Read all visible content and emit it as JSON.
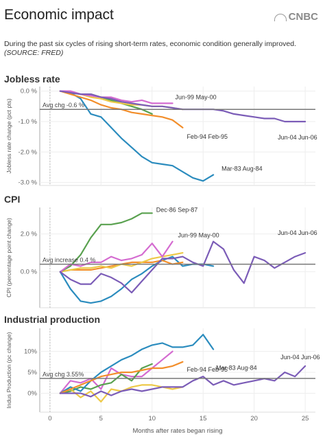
{
  "header": {
    "title": "Economic impact",
    "logo_text": "CNBC",
    "subtitle": "During the past six cycles of rising short-term rates, economic condition generally improved.",
    "source": "(SOURCE: FRED)"
  },
  "colors": {
    "mar83": "#2b8cbe",
    "feb94": "#f28e2b",
    "jun99": "#d46bd0",
    "jun04": "#7b5cb7",
    "dec86": "#59a14f",
    "extra": "#edc948",
    "avg": "#777777",
    "axis": "#aaaaaa"
  },
  "shared": {
    "xlabel": "Months after rates began rising",
    "x_ticks": [
      "0",
      "5",
      "10",
      "15",
      "20",
      "25"
    ]
  },
  "chart_data": [
    {
      "type": "line",
      "title": "Jobless rate",
      "ylabel": "Jobless rate change (pct pts)",
      "y_ticks": [
        "0.0 %",
        "-1.0 %",
        "-2.0 %",
        "-3.0 %"
      ],
      "ylim": [
        -3.1,
        0.15
      ],
      "xlim": [
        -1,
        26
      ],
      "avg": {
        "value": -0.6,
        "label": "Avg chg -0.6 %"
      },
      "series": [
        {
          "name": "Mar-83 Aug-84",
          "color_key": "mar83",
          "x": [
            1,
            2,
            3,
            4,
            5,
            6,
            7,
            8,
            9,
            10,
            11,
            12,
            13,
            14,
            15,
            16
          ],
          "y": [
            0,
            -0.05,
            -0.25,
            -0.75,
            -0.85,
            -1.2,
            -1.55,
            -1.85,
            -2.15,
            -2.35,
            -2.4,
            -2.45,
            -2.65,
            -2.85,
            -2.95,
            -2.75
          ]
        },
        {
          "name": "Feb-94 Feb-95",
          "color_key": "feb94",
          "x": [
            1,
            2,
            3,
            4,
            5,
            6,
            7,
            8,
            9,
            10,
            11,
            12,
            13
          ],
          "y": [
            0,
            -0.1,
            -0.2,
            -0.3,
            -0.45,
            -0.55,
            -0.6,
            -0.7,
            -0.75,
            -0.8,
            -0.85,
            -0.95,
            -1.2
          ]
        },
        {
          "name": "Jun-99 May-00",
          "color_key": "jun99",
          "x": [
            1,
            2,
            3,
            4,
            5,
            6,
            7,
            8,
            9,
            10,
            11,
            12
          ],
          "y": [
            0,
            0,
            -0.1,
            -0.15,
            -0.2,
            -0.2,
            -0.3,
            -0.35,
            -0.3,
            -0.4,
            -0.4,
            -0.4
          ]
        },
        {
          "name": "Jun-04 Jun-06",
          "color_key": "jun04",
          "x": [
            1,
            2,
            3,
            4,
            5,
            6,
            7,
            8,
            9,
            10,
            11,
            12,
            13,
            14,
            15,
            16,
            17,
            18,
            19,
            20,
            21,
            22,
            23,
            24,
            25
          ],
          "y": [
            0,
            -0.05,
            -0.1,
            -0.1,
            -0.2,
            -0.25,
            -0.35,
            -0.4,
            -0.45,
            -0.5,
            -0.5,
            -0.55,
            -0.6,
            -0.6,
            -0.6,
            -0.6,
            -0.65,
            -0.75,
            -0.8,
            -0.85,
            -0.9,
            -0.9,
            -1.0,
            -1.0,
            -1.0
          ]
        },
        {
          "name": "",
          "color_key": "dec86",
          "x": [
            1,
            2,
            3,
            4,
            5,
            6,
            7,
            8,
            9,
            10
          ],
          "y": [
            0,
            -0.05,
            -0.1,
            -0.1,
            -0.2,
            -0.3,
            -0.4,
            -0.5,
            -0.6,
            -0.75
          ]
        },
        {
          "name": "",
          "color_key": "extra",
          "x": [
            1,
            2,
            3,
            4,
            5,
            6,
            7,
            8,
            9,
            10,
            11,
            12,
            13
          ],
          "y": [
            0,
            -0.05,
            -0.1,
            -0.2,
            -0.25,
            -0.35,
            -0.4,
            -0.45,
            -0.45,
            -0.5,
            -0.5,
            -0.55,
            -0.6
          ]
        }
      ],
      "labels": [
        {
          "text": "Jun-99 May-00",
          "series": 2
        },
        {
          "text": "Feb-94 Feb-95",
          "series": 1
        },
        {
          "text": "Jun-04 Jun-06",
          "series": 3
        },
        {
          "text": "Mar-83 Aug-84",
          "series": 0
        }
      ]
    },
    {
      "type": "line",
      "title": "CPI",
      "ylabel": "CPI (percentage point change)",
      "y_ticks": [
        "2.0 %",
        "0.0 %"
      ],
      "ylim": [
        -1.9,
        3.4
      ],
      "xlim": [
        -1,
        26
      ],
      "avg": {
        "value": 0.4,
        "label": "Avg increase 0.4 %"
      },
      "series": [
        {
          "name": "Dec-86 Sep-87",
          "color_key": "dec86",
          "x": [
            1,
            2,
            3,
            4,
            5,
            6,
            7,
            8,
            9,
            10
          ],
          "y": [
            0,
            0.3,
            0.9,
            1.8,
            2.5,
            2.5,
            2.6,
            2.8,
            3.1,
            3.1
          ]
        },
        {
          "name": "Jun-99 May-00",
          "color_key": "jun99",
          "x": [
            1,
            2,
            3,
            4,
            5,
            6,
            7,
            8,
            9,
            10,
            11,
            12
          ],
          "y": [
            0,
            0.4,
            0.3,
            0.5,
            0.5,
            0.8,
            0.6,
            0.7,
            0.9,
            1.5,
            0.8,
            1.6
          ]
        },
        {
          "name": "Jun-04 Jun-06",
          "color_key": "jun04",
          "x": [
            1,
            2,
            3,
            4,
            5,
            6,
            7,
            8,
            9,
            10,
            11,
            12,
            13,
            14,
            15,
            16,
            17,
            18,
            19,
            20,
            21,
            22,
            23,
            24,
            25
          ],
          "y": [
            0,
            -0.4,
            -0.65,
            -0.65,
            -0.1,
            -0.3,
            -0.6,
            -1.1,
            -0.5,
            0.1,
            0.7,
            0.7,
            0.8,
            0.5,
            0.3,
            1.6,
            1.2,
            0.1,
            -0.6,
            0.8,
            0.6,
            0.2,
            0.5,
            0.8,
            1.0
          ]
        },
        {
          "name": "",
          "color_key": "mar83",
          "x": [
            1,
            2,
            3,
            4,
            5,
            6,
            7,
            8,
            9,
            10,
            11,
            12,
            13,
            14,
            15,
            16
          ],
          "y": [
            0,
            -0.9,
            -1.55,
            -1.65,
            -1.55,
            -1.3,
            -0.9,
            -0.4,
            -0.1,
            0.3,
            0.6,
            0.8,
            0.3,
            0.4,
            0.4,
            0.3
          ]
        },
        {
          "name": "",
          "color_key": "feb94",
          "x": [
            1,
            2,
            3,
            4,
            5,
            6,
            7,
            8,
            9,
            10,
            11,
            12,
            13
          ],
          "y": [
            0,
            0.1,
            0.1,
            0.1,
            0.2,
            0.3,
            0.4,
            0.5,
            0.5,
            0.5,
            0.6,
            0.4,
            0.5
          ]
        },
        {
          "name": "",
          "color_key": "extra",
          "x": [
            1,
            2,
            3,
            4,
            5,
            6,
            7,
            8,
            9,
            10,
            11,
            12,
            13
          ],
          "y": [
            0,
            0.1,
            0.2,
            0.2,
            0.3,
            0.2,
            0.4,
            0.3,
            0.5,
            0.7,
            0.8,
            0.9,
            1.0
          ]
        }
      ],
      "labels": [
        {
          "text": "Dec-86 Sep-87",
          "series": 0
        },
        {
          "text": "Jun-99 May-00",
          "series": 1
        },
        {
          "text": "Jun-04 Jun-06",
          "series": 2
        }
      ]
    },
    {
      "type": "line",
      "title": "Industrial production",
      "ylabel": "Indus Production (pc change)",
      "y_ticks": [
        "10%",
        "5%",
        "0%"
      ],
      "ylim": [
        -4.5,
        15.5
      ],
      "xlim": [
        -1,
        26
      ],
      "avg": {
        "value": 3.55,
        "label": "Avg chg 3.55%"
      },
      "series": [
        {
          "name": "Mar-83 Aug-84",
          "color_key": "mar83",
          "x": [
            1,
            2,
            3,
            4,
            5,
            6,
            7,
            8,
            9,
            10,
            11,
            12,
            13,
            14,
            15,
            16
          ],
          "y": [
            0,
            1.5,
            0.5,
            3.0,
            5.0,
            6.5,
            8.0,
            9.0,
            10.5,
            11.5,
            12.0,
            11.0,
            11.0,
            11.5,
            14.0,
            10.5
          ]
        },
        {
          "name": "Feb-94 Feb-95",
          "color_key": "feb94",
          "x": [
            1,
            2,
            3,
            4,
            5,
            6,
            7,
            8,
            9,
            10,
            11,
            12,
            13
          ],
          "y": [
            0,
            1.0,
            2.0,
            3.0,
            4.0,
            4.5,
            5.0,
            5.0,
            5.5,
            6.0,
            6.0,
            6.5,
            7.5
          ]
        },
        {
          "name": "Jun-04 Jun-06",
          "color_key": "jun04",
          "x": [
            1,
            2,
            3,
            4,
            5,
            6,
            7,
            8,
            9,
            10,
            11,
            12,
            13,
            14,
            15,
            16,
            17,
            18,
            19,
            20,
            21,
            22,
            23,
            24,
            25
          ],
          "y": [
            0,
            0,
            0,
            -0.8,
            0.5,
            -0.5,
            0.5,
            1.0,
            0.5,
            1.0,
            1.5,
            1.5,
            1.5,
            3.0,
            4.0,
            2.0,
            3.0,
            2.0,
            2.5,
            3.0,
            3.5,
            3.0,
            5.0,
            4.0,
            6.5
          ]
        },
        {
          "name": "",
          "color_key": "jun99",
          "x": [
            1,
            2,
            3,
            4,
            5,
            6,
            7,
            8,
            9,
            10,
            11,
            12
          ],
          "y": [
            0,
            3.0,
            2.5,
            3.5,
            1.0,
            6.0,
            4.5,
            4.0,
            4.0,
            6.0,
            8.0,
            10.0
          ]
        },
        {
          "name": "",
          "color_key": "dec86",
          "x": [
            1,
            2,
            3,
            4,
            5,
            6,
            7,
            8,
            9,
            10
          ],
          "y": [
            0,
            0.5,
            1.5,
            1.0,
            2.0,
            2.5,
            4.5,
            3.0,
            6.0,
            7.0
          ]
        },
        {
          "name": "",
          "color_key": "extra",
          "x": [
            1,
            2,
            3,
            4,
            5,
            6,
            7,
            8,
            9,
            10,
            11,
            12,
            13
          ],
          "y": [
            0,
            1.0,
            -1.0,
            0.5,
            -2.0,
            1.0,
            0.5,
            1.5,
            2.0,
            2.0,
            1.5,
            1.0,
            1.5
          ]
        }
      ],
      "labels": [
        {
          "text": "Mar-83 Aug-84",
          "series": 0
        },
        {
          "text": "Feb-94 Feb-95",
          "series": 1
        },
        {
          "text": "Jun-04 Jun-06",
          "series": 2
        }
      ]
    }
  ]
}
